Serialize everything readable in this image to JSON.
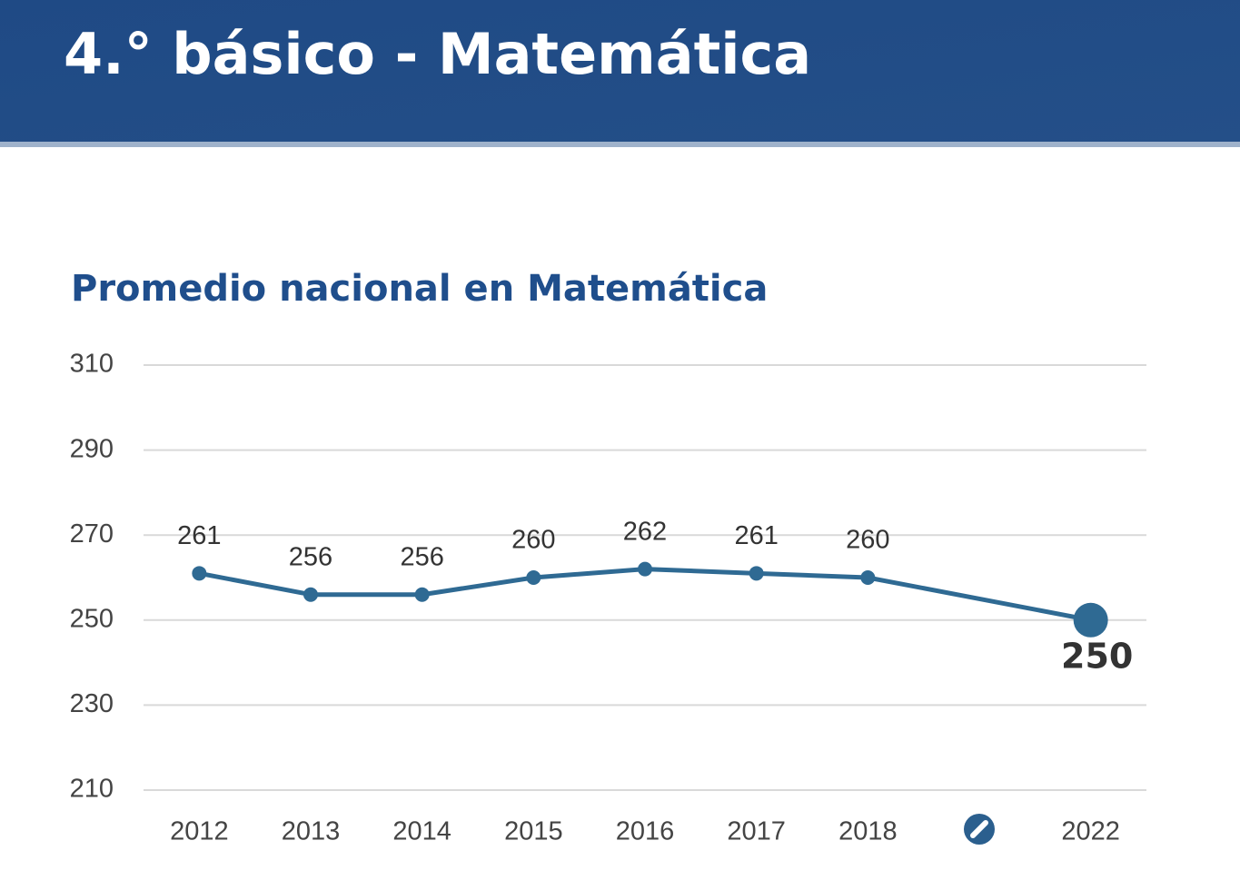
{
  "header": {
    "title": "4.° básico - Matemática"
  },
  "chart_data": {
    "type": "line",
    "title": "Promedio nacional en Matemática",
    "categories": [
      "2012",
      "2013",
      "2014",
      "2015",
      "2016",
      "2017",
      "2018",
      null,
      "2022"
    ],
    "values": [
      261,
      256,
      256,
      260,
      262,
      261,
      260,
      null,
      250
    ],
    "color": "#2f6a93",
    "ylim": [
      210,
      310
    ],
    "yticks": [
      210,
      230,
      250,
      270,
      290,
      310
    ],
    "grid": true
  }
}
